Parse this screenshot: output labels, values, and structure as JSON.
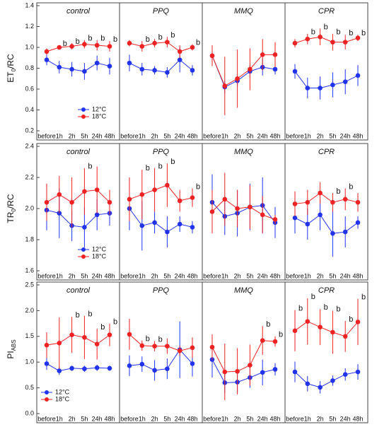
{
  "chart_data": [
    {
      "type": "line",
      "title": "control",
      "ylabel": {
        "main": "ET",
        "sub": "0",
        "tail": "/RC"
      },
      "legend": "lower right",
      "categories": [
        "before",
        "1h",
        "2h",
        "5h",
        "24h",
        "48h"
      ],
      "ylim": [
        0.2,
        1.4
      ],
      "yticks": [
        0.2,
        0.4,
        0.6,
        0.8,
        {
          "value": 1,
          "label": "1.0"
        },
        1.2,
        1.4
      ],
      "series": [
        {
          "name": "12°C",
          "color": "#2233ee",
          "values": [
            0.88,
            0.81,
            0.79,
            0.77,
            0.85,
            0.82
          ],
          "errors": [
            0.05,
            0.06,
            0.07,
            0.08,
            0.07,
            0.08
          ]
        },
        {
          "name": "18°C",
          "color": "#ee2222",
          "values": [
            0.96,
            1.0,
            1.01,
            1.03,
            1.02,
            1.01
          ],
          "errors": [
            0.03,
            0.02,
            0.03,
            0.04,
            0.05,
            0.05
          ],
          "labels": [
            null,
            "b",
            "b",
            "b",
            "b",
            "b"
          ]
        }
      ]
    },
    {
      "type": "line",
      "title": "PPQ",
      "categories": [
        "before",
        "1h",
        "2h",
        "5h",
        "24h",
        "48h"
      ],
      "ylim": [
        0.2,
        1.4
      ],
      "series": [
        {
          "color": "#2233ee",
          "values": [
            0.85,
            0.79,
            0.78,
            0.76,
            0.88,
            0.78
          ],
          "errors": [
            0.08,
            0.06,
            0.04,
            0.05,
            0.12,
            0.05
          ]
        },
        {
          "color": "#ee2222",
          "values": [
            1.04,
            1.01,
            1.04,
            1.05,
            0.96,
            1.0
          ],
          "errors": [
            0.03,
            0.05,
            0.04,
            0.05,
            0.06,
            0.03
          ],
          "labels": [
            null,
            "b",
            "b",
            "b",
            null,
            "b"
          ]
        }
      ]
    },
    {
      "type": "line",
      "title": "MMQ",
      "categories": [
        "before",
        "1h",
        "2h",
        "5h",
        "24h",
        "48h"
      ],
      "ylim": [
        0.2,
        1.4
      ],
      "series": [
        {
          "color": "#2233ee",
          "values": [
            0.92,
            0.62,
            0.68,
            0.77,
            0.81,
            0.79
          ],
          "errors": [
            0.07,
            0.06,
            0.05,
            0.06,
            0.08,
            0.05
          ]
        },
        {
          "color": "#ee2222",
          "values": [
            0.92,
            0.63,
            0.7,
            0.79,
            0.93,
            0.93
          ],
          "errors": [
            0.1,
            0.28,
            0.28,
            0.2,
            0.15,
            0.12
          ]
        }
      ]
    },
    {
      "type": "line",
      "title": "CPR",
      "categories": [
        "before",
        "1h",
        "2h",
        "5h",
        "24h",
        "48h"
      ],
      "ylim": [
        0.2,
        1.4
      ],
      "series": [
        {
          "color": "#2233ee",
          "values": [
            0.77,
            0.61,
            0.61,
            0.64,
            0.67,
            0.73
          ],
          "errors": [
            0.07,
            0.1,
            0.11,
            0.12,
            0.12,
            0.1
          ]
        },
        {
          "color": "#ee2222",
          "values": [
            1.04,
            1.08,
            1.1,
            1.05,
            1.05,
            1.09
          ],
          "errors": [
            0.04,
            0.05,
            0.08,
            0.08,
            0.07,
            0.03
          ],
          "labels": [
            null,
            "b",
            "b",
            "b",
            "b",
            "b"
          ]
        }
      ]
    },
    {
      "type": "line",
      "title": "control",
      "ylabel": {
        "main": "TR",
        "sub": "0",
        "tail": "/RC"
      },
      "legend": "lower right",
      "categories": [
        "before",
        "1h",
        "2h",
        "5h",
        "24h",
        "48h"
      ],
      "ylim": [
        1.6,
        2.4
      ],
      "yticks": [
        1.6,
        1.8,
        {
          "value": 2,
          "label": "2.0"
        },
        2.2,
        2.4
      ],
      "series": [
        {
          "name": "12°C",
          "color": "#2233ee",
          "values": [
            1.99,
            1.97,
            1.89,
            1.88,
            1.96,
            1.97
          ],
          "errors": [
            0.13,
            0.16,
            0.1,
            0.13,
            0.1,
            0.08
          ]
        },
        {
          "name": "18°C",
          "color": "#ee2222",
          "values": [
            2.04,
            2.09,
            2.04,
            2.11,
            2.12,
            2.04
          ],
          "errors": [
            0.12,
            0.12,
            0.16,
            0.15,
            0.15,
            0.08
          ],
          "labels": [
            null,
            null,
            null,
            "b",
            null,
            null
          ]
        }
      ]
    },
    {
      "type": "line",
      "title": "PPQ",
      "categories": [
        "before",
        "1h",
        "2h",
        "5h",
        "24h",
        "48h"
      ],
      "ylim": [
        1.6,
        2.4
      ],
      "series": [
        {
          "color": "#2233ee",
          "values": [
            2.0,
            1.89,
            1.91,
            1.85,
            1.9,
            1.88
          ],
          "errors": [
            0.14,
            0.16,
            0.07,
            0.1,
            0.05,
            0.04
          ]
        },
        {
          "color": "#ee2222",
          "values": [
            2.06,
            2.09,
            2.12,
            2.15,
            2.05,
            2.07
          ],
          "errors": [
            0.14,
            0.16,
            0.14,
            0.14,
            0.07,
            0.06
          ],
          "labels": [
            null,
            "b",
            "b",
            "b",
            null,
            "b"
          ]
        }
      ]
    },
    {
      "type": "line",
      "title": "MMQ",
      "categories": [
        "before",
        "1h",
        "2h",
        "5h",
        "24h",
        "48h"
      ],
      "ylim": [
        1.6,
        2.4
      ],
      "series": [
        {
          "color": "#2233ee",
          "values": [
            2.04,
            1.95,
            1.97,
            2.01,
            2.02,
            1.91
          ],
          "errors": [
            0.18,
            0.12,
            0.15,
            0.15,
            0.18,
            0.1
          ]
        },
        {
          "color": "#ee2222",
          "values": [
            1.98,
            2.06,
            2.0,
            2.01,
            1.96,
            1.93
          ],
          "errors": [
            0.14,
            0.17,
            0.12,
            0.14,
            0.12,
            0.03
          ]
        }
      ]
    },
    {
      "type": "line",
      "title": "CPR",
      "categories": [
        "before",
        "1h",
        "2h",
        "5h",
        "24h",
        "48h"
      ],
      "ylim": [
        1.6,
        2.4
      ],
      "series": [
        {
          "color": "#2233ee",
          "values": [
            1.94,
            1.9,
            1.96,
            1.84,
            1.85,
            1.91
          ],
          "errors": [
            0.1,
            0.1,
            0.1,
            0.15,
            0.1,
            0.04
          ]
        },
        {
          "color": "#ee2222",
          "values": [
            2.03,
            2.04,
            2.1,
            2.04,
            2.06,
            2.04
          ],
          "errors": [
            0.08,
            0.08,
            0.07,
            0.06,
            0.07,
            0.06
          ],
          "labels": [
            null,
            null,
            null,
            "b",
            "b",
            null
          ]
        }
      ]
    },
    {
      "type": "line",
      "title": "control",
      "ylabel": {
        "main": "PI",
        "sub": "ABS"
      },
      "legend": "lower left",
      "categories": [
        "before",
        "1h",
        "2h",
        "5h",
        "24h",
        "48h"
      ],
      "ylim": [
        0,
        2.5
      ],
      "yticks": [
        {
          "value": 0,
          "label": "0.0"
        },
        0.5,
        {
          "value": 1,
          "label": "1.0"
        },
        1.5,
        {
          "value": 2,
          "label": "2.0"
        },
        2.5
      ],
      "series": [
        {
          "name": "12°C",
          "color": "#2233ee",
          "values": [
            0.97,
            0.83,
            0.88,
            0.87,
            0.89,
            0.88
          ],
          "errors": [
            0.12,
            0.08,
            0.05,
            0.06,
            0.06,
            0.05
          ]
        },
        {
          "name": "18°C",
          "color": "#ee2222",
          "values": [
            1.33,
            1.37,
            1.53,
            1.48,
            1.35,
            1.53
          ],
          "errors": [
            0.25,
            0.5,
            0.35,
            0.42,
            0.3,
            0.22
          ],
          "labels": [
            null,
            null,
            "b",
            "b",
            "b",
            "b"
          ]
        }
      ]
    },
    {
      "type": "line",
      "title": "PPQ",
      "categories": [
        "before",
        "1h",
        "2h",
        "5h",
        "24h",
        "48h"
      ],
      "ylim": [
        0,
        2.5
      ],
      "series": [
        {
          "color": "#2233ee",
          "values": [
            0.93,
            0.96,
            0.84,
            0.87,
            1.24,
            0.97
          ],
          "errors": [
            0.2,
            0.15,
            0.2,
            0.2,
            0.55,
            0.25
          ]
        },
        {
          "color": "#ee2222",
          "values": [
            1.54,
            1.32,
            1.31,
            1.31,
            1.22,
            1.28
          ],
          "errors": [
            0.3,
            0.1,
            0.1,
            0.15,
            0.1,
            0.2
          ],
          "labels": [
            null,
            "b",
            "b",
            null,
            null,
            null
          ]
        }
      ]
    },
    {
      "type": "line",
      "title": "MMQ",
      "categories": [
        "before",
        "1h",
        "2h",
        "5h",
        "24h",
        "48h"
      ],
      "ylim": [
        0,
        2.5
      ],
      "series": [
        {
          "color": "#2233ee",
          "values": [
            1.05,
            0.6,
            0.61,
            0.7,
            0.8,
            0.86
          ],
          "errors": [
            0.35,
            0.2,
            0.2,
            0.2,
            0.25,
            0.12
          ]
        },
        {
          "color": "#ee2222",
          "values": [
            1.29,
            0.81,
            0.82,
            0.94,
            1.42,
            1.4
          ],
          "errors": [
            0.25,
            0.55,
            0.45,
            0.4,
            0.28,
            0.1
          ],
          "labels": [
            null,
            null,
            null,
            null,
            "b",
            "b"
          ]
        }
      ]
    },
    {
      "type": "line",
      "title": "CPR",
      "categories": [
        "before",
        "1h",
        "2h",
        "5h",
        "24h",
        "48h"
      ],
      "ylim": [
        0,
        2.5
      ],
      "series": [
        {
          "color": "#2233ee",
          "values": [
            0.81,
            0.58,
            0.51,
            0.64,
            0.76,
            0.81
          ],
          "errors": [
            0.2,
            0.15,
            0.12,
            0.1,
            0.12,
            0.15
          ]
        },
        {
          "color": "#ee2222",
          "values": [
            1.61,
            1.79,
            1.68,
            1.58,
            1.5,
            1.78
          ],
          "errors": [
            0.4,
            0.45,
            0.35,
            0.42,
            0.3,
            0.45
          ],
          "labels": [
            "b",
            "b",
            "b",
            "b",
            "b",
            "b"
          ]
        }
      ]
    }
  ]
}
